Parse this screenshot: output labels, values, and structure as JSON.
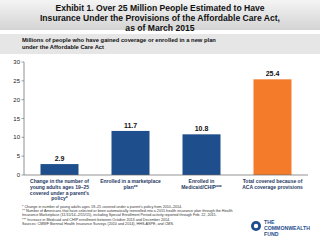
{
  "chart_data": {
    "type": "bar",
    "title": "Exhibit 1. Over 25 Million People Estimated to Have Insurance Under the Provisions of the Affordable Care Act, as of March 2015",
    "subtitle": "Millions of people who have gained coverage or enrolled in a new plan under the Affordable Care Act",
    "categories": [
      "Change in the number of young adults ages 19–25 covered under a parent's policy*",
      "Enrolled in a marketplace plan**",
      "Enrolled in Medicaid/CHIP***",
      "Total covered because of ACA coverage provisions"
    ],
    "values": [
      2.9,
      11.7,
      10.8,
      25.4
    ],
    "colors": [
      "#1f4e8c",
      "#1f4e8c",
      "#1f4e8c",
      "#f47b2a"
    ],
    "ylim": [
      0,
      30
    ],
    "yticks": [
      0,
      5,
      10,
      15,
      20,
      25,
      30
    ],
    "grid": false,
    "data_labels": true,
    "footnotes": [
      "* Change in number of young adults ages 19–25 covered under a parent's policy from 2010–2014.",
      "** Number of Americans that have selected or been automatically reenrolled into a 2015 health insurance plan through the Health Insurance Marketplace (11/15/14–2/15/15), including Special Enrollment Period activity reported through Feb. 22, 2015.",
      "*** Increase in Medicaid and CHIP enrollment between October 2013 and December 2014.",
      "Sources: CMWF Biennial Health Insurance Surveys (2010 and 2014), HHS-ASPE, and CMS."
    ],
    "logo": "THE COMMONWEALTH FUND"
  }
}
